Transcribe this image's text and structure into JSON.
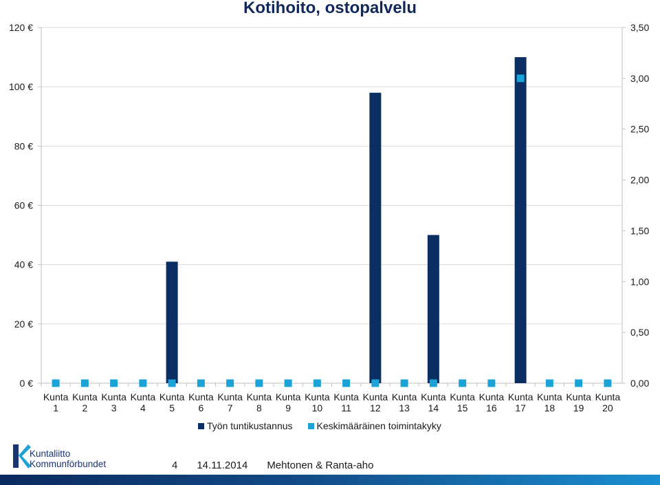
{
  "title": "Kotihoito, ostopalvelu",
  "chart_data": {
    "type": "bar",
    "categories": [
      "Kunta 1",
      "Kunta 2",
      "Kunta 3",
      "Kunta 4",
      "Kunta 5",
      "Kunta 6",
      "Kunta 7",
      "Kunta 8",
      "Kunta 9",
      "Kunta 10",
      "Kunta 11",
      "Kunta 12",
      "Kunta 13",
      "Kunta 14",
      "Kunta 15",
      "Kunta 16",
      "Kunta 17",
      "Kunta 18",
      "Kunta 19",
      "Kunta 20"
    ],
    "series": [
      {
        "name": "Työn tuntikustannus",
        "type": "bar",
        "axis": "left",
        "color": "#0b2f63",
        "values": [
          0,
          0,
          0,
          0,
          41,
          0,
          0,
          0,
          0,
          0,
          0,
          98,
          0,
          50,
          0,
          0,
          110,
          0,
          0,
          0
        ]
      },
      {
        "name": "Keskimääräinen toimintakyky",
        "type": "marker",
        "axis": "right",
        "color": "#1ba3d8",
        "values": [
          0,
          0,
          0,
          0,
          0,
          0,
          0,
          0,
          0,
          0,
          0,
          0,
          0,
          0,
          0,
          0,
          3.0,
          0,
          0,
          0
        ]
      }
    ],
    "y_left": {
      "min": 0,
      "max": 120,
      "ticks": [
        0,
        20,
        40,
        60,
        80,
        100,
        120
      ],
      "tick_labels": [
        "0 €",
        "20 €",
        "40 €",
        "60 €",
        "80 €",
        "100 €",
        "120 €"
      ]
    },
    "y_right": {
      "min": 0,
      "max": 3.5,
      "ticks": [
        0,
        0.5,
        1,
        1.5,
        2,
        2.5,
        3,
        3.5
      ],
      "tick_labels": [
        "0,00",
        "0,50",
        "1,00",
        "1,50",
        "2,00",
        "2,50",
        "3,00",
        "3,50"
      ]
    },
    "grid": true,
    "legend_position": "bottom"
  },
  "footer": {
    "page": "4",
    "date": "14.11.2014",
    "authors": "Mehtonen & Ranta-aho"
  },
  "logo": {
    "line1": "Kuntaliitto",
    "line2": "Kommunförbundet"
  }
}
